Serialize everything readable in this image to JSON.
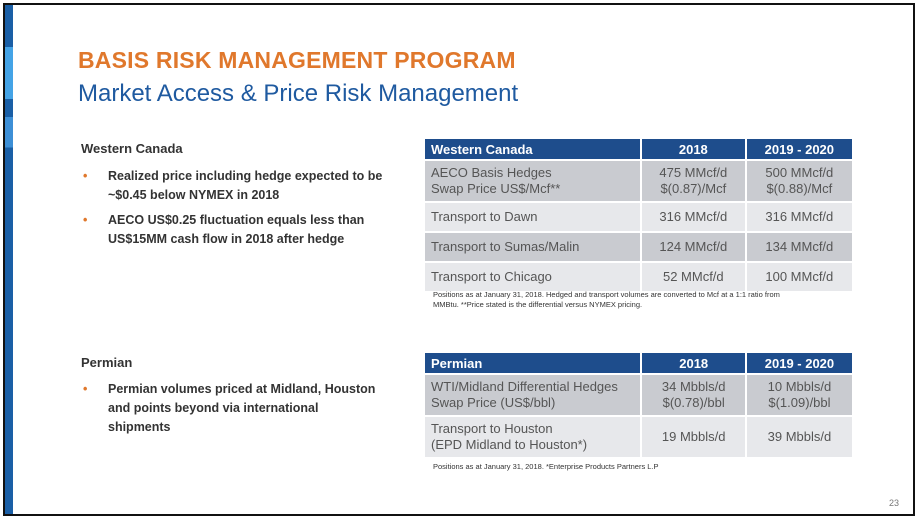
{
  "title": "BASIS RISK MANAGEMENT PROGRAM",
  "subtitle": "Market Access & Price Risk Management",
  "western": {
    "heading": "Western Canada",
    "bullets": [
      "Realized price including hedge expected to be ~$0.45 below NYMEX in 2018",
      "AECO US$0.25 fluctuation equals less than US$15MM cash flow in 2018 after hedge"
    ],
    "table": {
      "headers": [
        "Western Canada",
        "2018",
        "2019 - 2020"
      ],
      "rows": [
        {
          "label_line1": "AECO Basis Hedges",
          "label_line2": "Swap Price US$/Mcf**",
          "v2018_line1": "475 MMcf/d",
          "v2018_line2": "$(0.87)/Mcf",
          "v2019_line1": "500 MMcf/d",
          "v2019_line2": "$(0.88)/Mcf"
        },
        {
          "label": "Transport to Dawn",
          "v2018": "316 MMcf/d",
          "v2019": "316 MMcf/d"
        },
        {
          "label": "Transport to Sumas/Malin",
          "v2018": "124 MMcf/d",
          "v2019": "134 MMcf/d"
        },
        {
          "label": "Transport to Chicago",
          "v2018": "52 MMcf/d",
          "v2019": "100 MMcf/d"
        }
      ]
    },
    "footnote_line1": "Positions as at January 31, 2018. Hedged and transport volumes are converted to Mcf at a 1:1 ratio from",
    "footnote_line2": "MMBtu. **Price stated is the differential versus NYMEX pricing."
  },
  "permian": {
    "heading": "Permian",
    "bullets": [
      "Permian volumes priced at Midland, Houston and points beyond via international shipments"
    ],
    "table": {
      "headers": [
        "Permian",
        "2018",
        "2019 - 2020"
      ],
      "rows": [
        {
          "label_line1": "WTI/Midland Differential Hedges",
          "label_line2": "Swap Price (US$/bbl)",
          "v2018_line1": "34 Mbbls/d",
          "v2018_line2": "$(0.78)/bbl",
          "v2019_line1": "10 Mbbls/d",
          "v2019_line2": "$(1.09)/bbl"
        },
        {
          "label_line1": "Transport to Houston",
          "label_line2": "(EPD Midland to Houston*)",
          "v2018": "19 Mbbls/d",
          "v2019": "39 Mbbls/d"
        }
      ]
    },
    "footnote": "Positions as at January 31, 2018. *Enterprise Products Partners L.P"
  },
  "page_number": "23",
  "colors": {
    "title_orange": "#e0782c",
    "subtitle_blue": "#1f5aa0",
    "table_header": "#1e4d8c",
    "row_dark": "#c9cbd0",
    "row_light": "#e7e8eb"
  }
}
